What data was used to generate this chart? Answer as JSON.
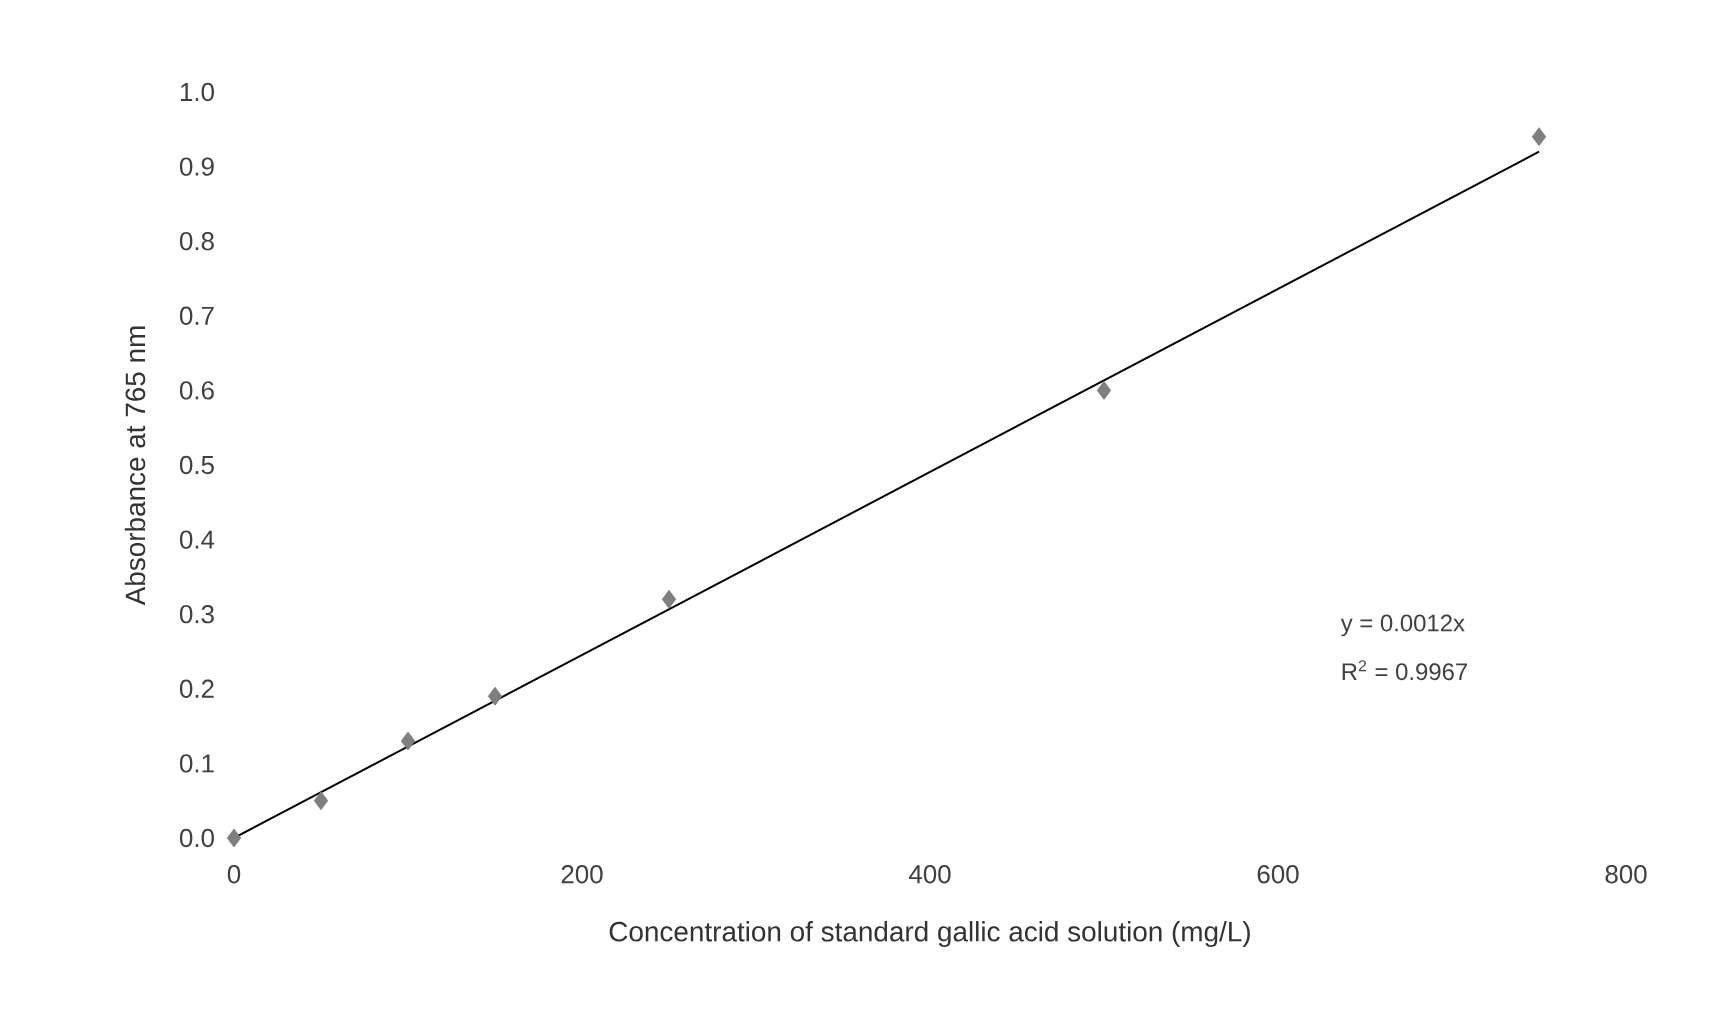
{
  "chart_data": {
    "type": "scatter",
    "xlabel": "Concentration of standard gallic acid solution (mg/L)",
    "ylabel": "Absorbance at 765 nm",
    "x": [
      0,
      50,
      100,
      150,
      250,
      500,
      750
    ],
    "series": [
      {
        "color": "#7f7f7f",
        "marker": "diamond",
        "values": [
          0,
          0.05,
          0.13,
          0.19,
          0.32,
          0.6,
          0.94
        ]
      },
      {
        "type": "line",
        "color": "#000000",
        "marker": "none",
        "line_style": "solid",
        "x": [
          0,
          750
        ],
        "values": [
          0,
          0.92
        ]
      }
    ],
    "xlim": [
      0,
      800
    ],
    "xticks": [
      0,
      200,
      400,
      600,
      800
    ],
    "ylim": [
      0,
      1.0
    ],
    "yticks": [
      {
        "value": 0,
        "label": "0.0"
      },
      {
        "value": 0.1,
        "label": "0.1"
      },
      {
        "value": 0.2,
        "label": "0.2"
      },
      {
        "value": 0.3,
        "label": "0.3"
      },
      {
        "value": 0.4,
        "label": "0.4"
      },
      {
        "value": 0.5,
        "label": "0.5"
      },
      {
        "value": 0.6,
        "label": "0.6"
      },
      {
        "value": 0.7,
        "label": "0.7"
      },
      {
        "value": 0.8,
        "label": "0.8"
      },
      {
        "value": 0.9,
        "label": "0.9"
      },
      {
        "value": 1.0,
        "label": "1.0"
      }
    ],
    "grid": false,
    "annotations": [
      "y = 0.0012x",
      "R$^{2}$ = 0.9967"
    ]
  }
}
